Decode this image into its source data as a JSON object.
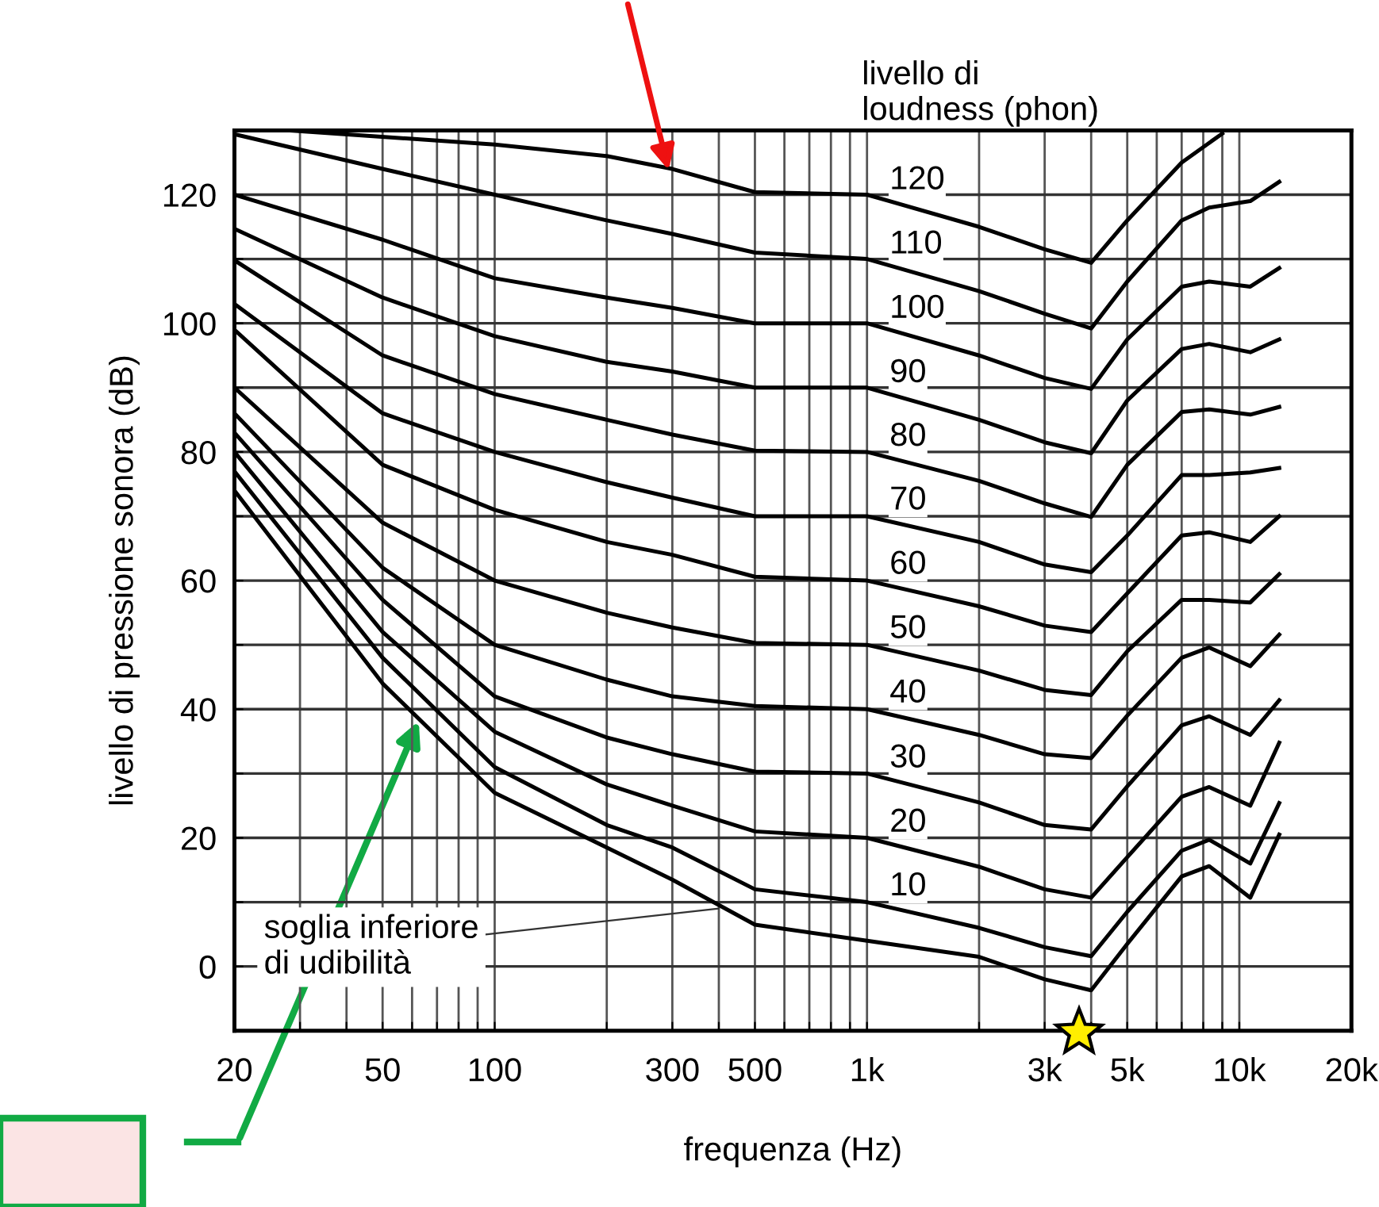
{
  "chart_data": {
    "type": "line",
    "xlabel": "frequenza (Hz)",
    "ylabel": "livello di pressione sonora (dB)",
    "legend_title": "livello di\nloudness (phon)",
    "log": "x",
    "xlim": [
      20,
      20000
    ],
    "ylim": [
      -10,
      130
    ],
    "xticks": [
      20,
      50,
      100,
      300,
      500,
      {
        "value": 1000,
        "label": "1k"
      },
      {
        "value": 3000,
        "label": "3k"
      },
      {
        "value": 5000,
        "label": "5k"
      },
      {
        "value": 10000,
        "label": "10k"
      },
      {
        "value": 20000,
        "label": "20k"
      },
      {
        "value": 30,
        "label": null
      },
      {
        "value": 40,
        "label": null
      },
      {
        "value": 60,
        "label": null
      },
      {
        "value": 70,
        "label": null
      },
      {
        "value": 80,
        "label": null
      },
      {
        "value": 90,
        "label": null
      },
      {
        "value": 200,
        "label": null
      },
      {
        "value": 400,
        "label": null
      },
      {
        "value": 600,
        "label": null
      },
      {
        "value": 700,
        "label": null
      },
      {
        "value": 800,
        "label": null
      },
      {
        "value": 900,
        "label": null
      },
      {
        "value": 2000,
        "label": null
      },
      {
        "value": 4000,
        "label": null
      },
      {
        "value": 6000,
        "label": null
      },
      {
        "value": 7000,
        "label": null
      },
      {
        "value": 8000,
        "label": null
      },
      {
        "value": 9000,
        "label": null
      }
    ],
    "yticks": [
      0,
      20,
      40,
      60,
      80,
      100,
      120,
      {
        "value": -10,
        "label": null
      },
      {
        "value": 10,
        "label": null
      },
      {
        "value": 30,
        "label": null
      },
      {
        "value": 50,
        "label": null
      },
      {
        "value": 70,
        "label": null
      },
      {
        "value": 90,
        "label": null
      },
      {
        "value": 110,
        "label": null
      },
      {
        "value": 130,
        "label": null
      }
    ],
    "grid": true,
    "marker": "none",
    "line_style": "solid",
    "x": [
      20,
      50,
      100,
      200,
      300,
      500,
      1000,
      2000,
      3000,
      4000,
      5000,
      7000,
      8300,
      10700,
      12800
    ],
    "series": [
      {
        "name": "120",
        "color": "#000000",
        "x": [
          28,
          100,
          200,
          300,
          500,
          1000,
          2000,
          3000,
          4000,
          5000,
          7000,
          9000
        ],
        "values": [
          130,
          127.8,
          126,
          124,
          120.4,
          120,
          115,
          111.5,
          109.4,
          116,
          125,
          129.5
        ]
      },
      {
        "name": "110",
        "color": "#000000",
        "values": [
          129.4,
          124,
          120,
          116,
          113.9,
          111,
          110,
          105,
          101.5,
          99.2,
          106.5,
          116,
          118,
          119,
          122
        ]
      },
      {
        "name": "100",
        "color": "#000000",
        "values": [
          120,
          113,
          107,
          104,
          102.4,
          100,
          100,
          95,
          91.5,
          89.8,
          97.5,
          105.7,
          106.5,
          105.7,
          108.6
        ]
      },
      {
        "name": "90",
        "color": "#000000",
        "values": [
          114.7,
          104,
          98,
          94,
          92.5,
          90,
          90,
          85,
          81.5,
          79.8,
          88,
          96,
          96.8,
          95.5,
          97.5
        ]
      },
      {
        "name": "80",
        "color": "#000000",
        "values": [
          109.8,
          95,
          89,
          85,
          82.7,
          80.2,
          80,
          75.5,
          72,
          69.9,
          78,
          86.2,
          86.6,
          85.8,
          87
        ]
      },
      {
        "name": "70",
        "color": "#000000",
        "values": [
          103,
          86,
          80,
          75.3,
          72.9,
          70,
          70,
          66,
          62.5,
          61.3,
          67,
          76.4,
          76.4,
          76.8,
          77.5
        ]
      },
      {
        "name": "60",
        "color": "#000000",
        "values": [
          99,
          78,
          71,
          66,
          64,
          60.6,
          60,
          56,
          53,
          52,
          58,
          67,
          67.5,
          66,
          70
        ]
      },
      {
        "name": "50",
        "color": "#000000",
        "values": [
          90,
          69,
          60,
          55,
          52.7,
          50.3,
          50,
          46,
          43,
          42.2,
          49,
          57,
          57,
          56.6,
          61
        ]
      },
      {
        "name": "40",
        "color": "#000000",
        "values": [
          86,
          62,
          50,
          44.6,
          42,
          40.5,
          40,
          36,
          33,
          32.4,
          39,
          48,
          49.6,
          46.7,
          51.6
        ]
      },
      {
        "name": "30",
        "color": "#000000",
        "values": [
          83,
          57,
          42,
          35.6,
          33,
          30.3,
          30,
          25.5,
          22,
          21.3,
          28,
          37.5,
          38.9,
          36,
          41.4
        ]
      },
      {
        "name": "20",
        "color": "#000000",
        "values": [
          80,
          52,
          36.5,
          28.3,
          25,
          21,
          20,
          15.5,
          12,
          10.7,
          17,
          26.4,
          27.9,
          25,
          34.8
        ]
      },
      {
        "name": "10",
        "color": "#000000",
        "values": [
          77,
          48,
          31,
          22,
          18.5,
          12,
          10,
          6,
          3,
          1.6,
          8.5,
          18,
          19.7,
          16,
          25.4
        ]
      },
      {
        "color": "#000000",
        "values": [
          74,
          44,
          27,
          18.5,
          13.5,
          6.5,
          4,
          1.5,
          -2,
          -3.7,
          3.5,
          14,
          15.6,
          10.7,
          20.5
        ]
      }
    ],
    "annotations": [
      {
        "text": "soglia inferiore\ndi udibilità",
        "x": 400,
        "y": 9
      }
    ]
  }
}
